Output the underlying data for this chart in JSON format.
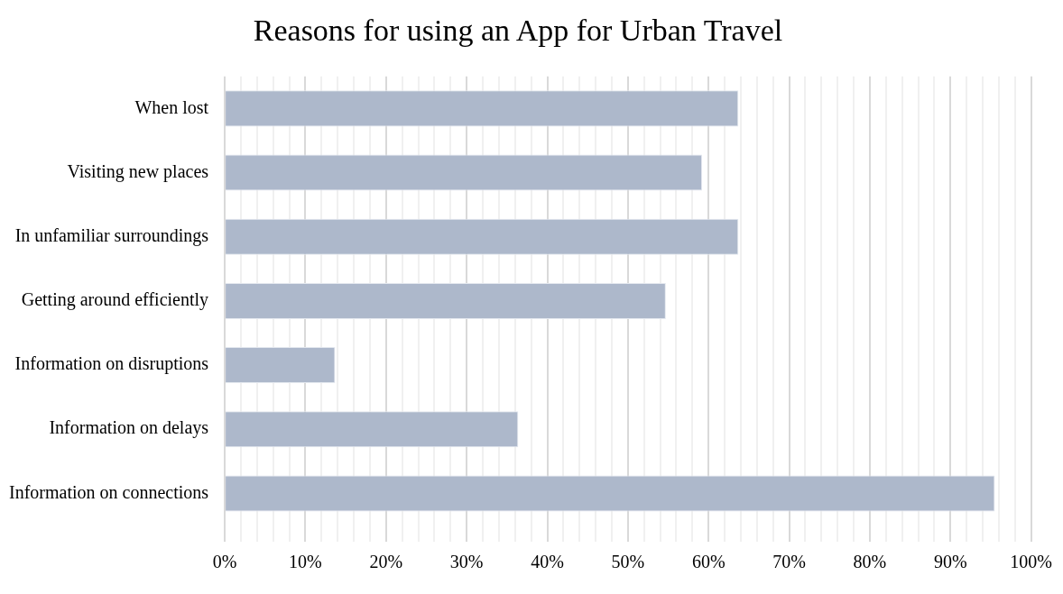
{
  "chart_data": {
    "type": "bar",
    "title": "Reasons for using an App for Urban Travel",
    "orientation": "horizontal",
    "categories": [
      "When lost",
      "Visiting new places",
      "In unfamiliar surroundings",
      "Getting around efficiently",
      "Information on disruptions",
      "Information on delays",
      "Information on connections"
    ],
    "values": [
      63.7,
      59.2,
      63.7,
      54.7,
      13.7,
      36.4,
      95.5
    ],
    "color": "#adb8cb",
    "xlim": [
      0,
      100
    ],
    "xticks": [
      {
        "value": 0,
        "label": "0%"
      },
      {
        "value": 2,
        "label": null
      },
      {
        "value": 4,
        "label": null
      },
      {
        "value": 6,
        "label": null
      },
      {
        "value": 8,
        "label": null
      },
      {
        "value": 10,
        "label": "10%"
      },
      {
        "value": 12,
        "label": null
      },
      {
        "value": 14,
        "label": null
      },
      {
        "value": 16,
        "label": null
      },
      {
        "value": 18,
        "label": null
      },
      {
        "value": 20,
        "label": "20%"
      },
      {
        "value": 22,
        "label": null
      },
      {
        "value": 24,
        "label": null
      },
      {
        "value": 26,
        "label": null
      },
      {
        "value": 28,
        "label": null
      },
      {
        "value": 30,
        "label": "30%"
      },
      {
        "value": 32,
        "label": null
      },
      {
        "value": 34,
        "label": null
      },
      {
        "value": 36,
        "label": null
      },
      {
        "value": 38,
        "label": null
      },
      {
        "value": 40,
        "label": "40%"
      },
      {
        "value": 42,
        "label": null
      },
      {
        "value": 44,
        "label": null
      },
      {
        "value": 46,
        "label": null
      },
      {
        "value": 48,
        "label": null
      },
      {
        "value": 50,
        "label": "50%"
      },
      {
        "value": 52,
        "label": null
      },
      {
        "value": 54,
        "label": null
      },
      {
        "value": 56,
        "label": null
      },
      {
        "value": 58,
        "label": null
      },
      {
        "value": 60,
        "label": "60%"
      },
      {
        "value": 62,
        "label": null
      },
      {
        "value": 64,
        "label": null
      },
      {
        "value": 66,
        "label": null
      },
      {
        "value": 68,
        "label": null
      },
      {
        "value": 70,
        "label": "70%"
      },
      {
        "value": 72,
        "label": null
      },
      {
        "value": 74,
        "label": null
      },
      {
        "value": 76,
        "label": null
      },
      {
        "value": 78,
        "label": null
      },
      {
        "value": 80,
        "label": "80%"
      },
      {
        "value": 82,
        "label": null
      },
      {
        "value": 84,
        "label": null
      },
      {
        "value": 86,
        "label": null
      },
      {
        "value": 88,
        "label": null
      },
      {
        "value": 90,
        "label": "90%"
      },
      {
        "value": 92,
        "label": null
      },
      {
        "value": 94,
        "label": null
      },
      {
        "value": 96,
        "label": null
      },
      {
        "value": 98,
        "label": null
      },
      {
        "value": 100,
        "label": "100%"
      }
    ],
    "grid": "x",
    "legend": false
  }
}
